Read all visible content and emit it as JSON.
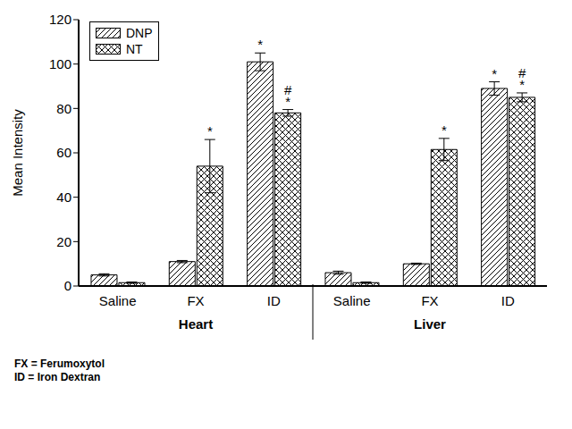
{
  "chart_data": {
    "type": "bar",
    "y_label": "Mean Intensity",
    "categories": [
      "Saline",
      "FX",
      "ID",
      "Saline",
      "FX",
      "ID"
    ],
    "groups": [
      {
        "name": "Heart",
        "size": 3
      },
      {
        "name": "Liver",
        "size": 3
      }
    ],
    "series": [
      {
        "name": "DNP",
        "color": "#000000",
        "line_style": "diagonal",
        "values": [
          5,
          11,
          101,
          6,
          10,
          89
        ],
        "errors": [
          0.5,
          0.5,
          4,
          0.7,
          0.3,
          3
        ],
        "annotations": [
          null,
          null,
          [
            "*"
          ],
          null,
          null,
          [
            "*"
          ]
        ]
      },
      {
        "name": "NT",
        "color": "#000000",
        "line_style": "crosshatch",
        "values": [
          1.5,
          54,
          78,
          1.5,
          61.5,
          85
        ],
        "errors": [
          0.3,
          12,
          1.5,
          0.3,
          5,
          2
        ],
        "annotations": [
          null,
          [
            "*"
          ],
          [
            "#",
            "*"
          ],
          null,
          [
            "*"
          ],
          [
            "#",
            "*"
          ]
        ]
      }
    ],
    "ylim": [
      0,
      120
    ],
    "yticks": [
      0,
      20,
      40,
      60,
      80,
      100,
      120
    ],
    "legend": "top-left",
    "notes": [
      "FX = Ferumoxytol",
      "ID = Iron Dextran"
    ]
  }
}
